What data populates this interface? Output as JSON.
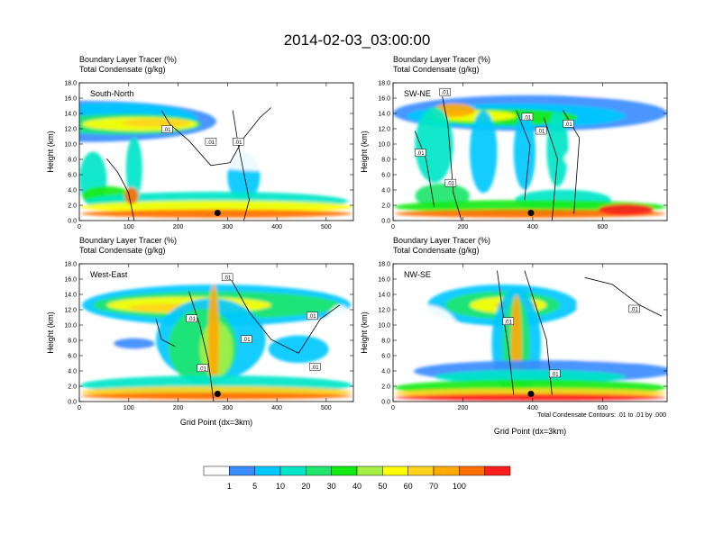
{
  "title": "2014-02-03_03:00:00",
  "chart_data": {
    "type": "heatmap",
    "title": "2014-02-03_03:00:00",
    "ylabel": "Height (km)",
    "xlabel": "Grid Point (dx=3km)",
    "header_line1": "Boundary Layer Tracer    (%)",
    "header_line2": "Total Condensate   (g/kg)",
    "contour_note": "Total Condensate Contours: .01 to .01 by .000",
    "contour_label": ".01",
    "colorbar": {
      "colors": [
        "#ffffff",
        "#3a8cff",
        "#00c8ff",
        "#00e6c8",
        "#21e66e",
        "#13eb13",
        "#a5f046",
        "#ffff00",
        "#ffd21e",
        "#ffaa00",
        "#ff6e00",
        "#ff1e1e"
      ],
      "labels": [
        "1",
        "5",
        "10",
        "20",
        "30",
        "40",
        "50",
        "60",
        "70",
        "100"
      ]
    },
    "panels": [
      {
        "label": "South-North",
        "xlim": [
          0,
          555
        ],
        "xticks": [
          "0",
          "100",
          "200",
          "300",
          "400",
          "500"
        ],
        "yticks": [
          "0.0",
          "2.0",
          "4.0",
          "6.0",
          "8.0",
          "10.0",
          "12.0",
          "14.0",
          "16.0",
          "18.0"
        ],
        "ylim": [
          0,
          18
        ],
        "marker": {
          "x": 280,
          "y": 1.0
        }
      },
      {
        "label": "SW-NE",
        "xlim": [
          0,
          785
        ],
        "xticks": [
          "0",
          "200",
          "400",
          "600"
        ],
        "yticks": [
          "0.0",
          "2.0",
          "4.0",
          "6.0",
          "8.0",
          "10.0",
          "12.0",
          "14.0",
          "16.0",
          "18.0"
        ],
        "ylim": [
          0,
          18
        ],
        "marker": {
          "x": 395,
          "y": 1.0
        }
      },
      {
        "label": "West-East",
        "xlim": [
          0,
          555
        ],
        "xticks": [
          "0",
          "100",
          "200",
          "300",
          "400",
          "500"
        ],
        "yticks": [
          "0.0",
          "2.0",
          "4.0",
          "6.0",
          "8.0",
          "10.0",
          "12.0",
          "14.0",
          "16.0",
          "18.0"
        ],
        "ylim": [
          0,
          18
        ],
        "marker": {
          "x": 280,
          "y": 1.0
        }
      },
      {
        "label": "NW-SE",
        "xlim": [
          0,
          785
        ],
        "xticks": [
          "0",
          "200",
          "400",
          "600"
        ],
        "yticks": [
          "0.0",
          "2.0",
          "4.0",
          "6.0",
          "8.0",
          "10.0",
          "12.0",
          "14.0",
          "16.0",
          "18.0"
        ],
        "ylim": [
          0,
          18
        ],
        "marker": {
          "x": 395,
          "y": 1.0
        }
      }
    ]
  }
}
